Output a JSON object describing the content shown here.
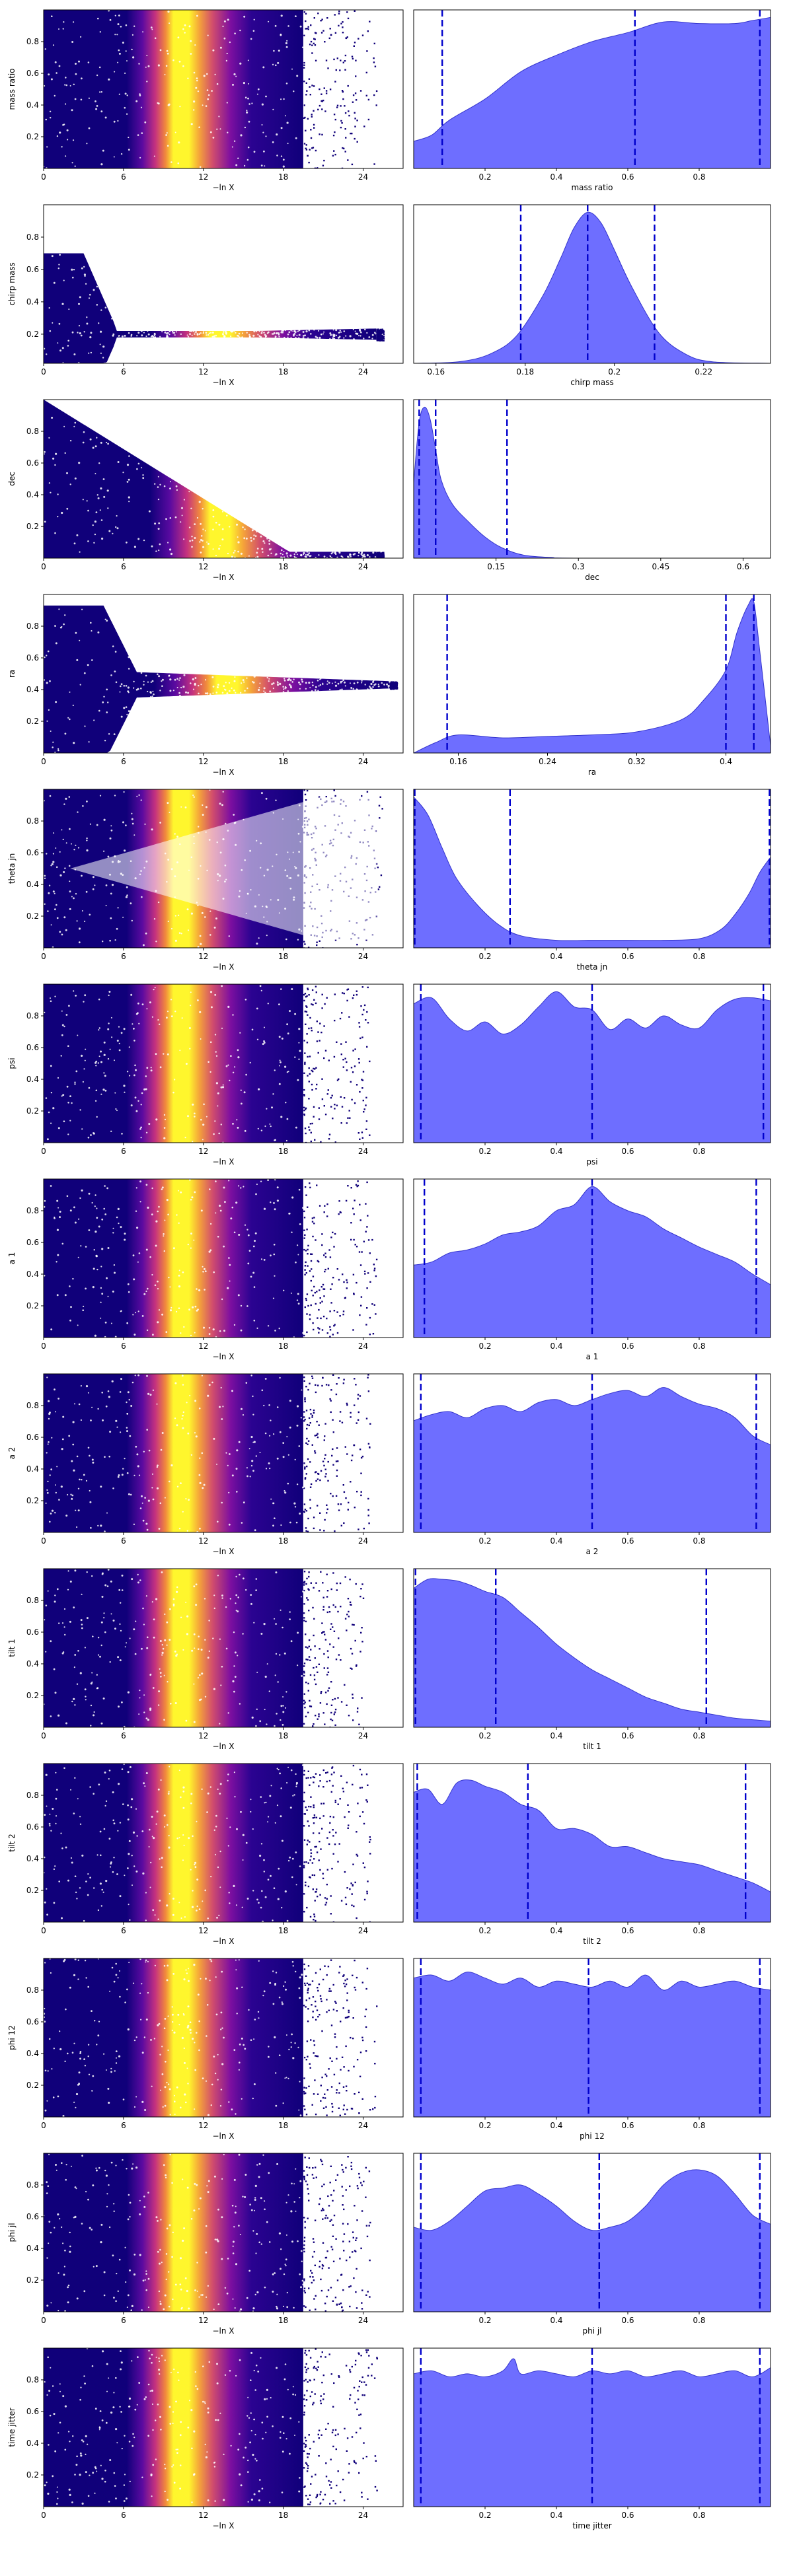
{
  "colors": {
    "kde_fill": "#6666ff",
    "kde_edge": "#3333cc",
    "quantile_line": "#0000cc",
    "scatter_low": "#10007a",
    "scatter_mid": "#c4317f",
    "scatter_high": "#fff62d",
    "axis": "#000000"
  },
  "scatter_colormap": "plasma-like (dark navy at edges, yellow near -lnX ≈ 13–14)",
  "chart_data": [
    {
      "type": "scatter",
      "param": "mass ratio",
      "title": "",
      "xlabel": "−ln X",
      "ylabel": "mass ratio",
      "xlim": [
        0,
        27
      ],
      "ylim": [
        0,
        1
      ],
      "xticks": [
        0,
        6,
        12,
        18,
        24
      ],
      "yticks": [
        0.2,
        0.4,
        0.6,
        0.8
      ],
      "shape": "uniform",
      "max_x": 24.5
    },
    {
      "type": "area",
      "param": "mass ratio",
      "xlabel": "mass ratio",
      "xlim": [
        0,
        1
      ],
      "xticks": [
        0.2,
        0.4,
        0.6,
        0.8
      ],
      "quantiles": [
        0.08,
        0.62,
        0.97
      ],
      "kde": {
        "x": [
          0,
          0.05,
          0.1,
          0.2,
          0.3,
          0.4,
          0.5,
          0.6,
          0.7,
          0.8,
          0.9,
          0.95,
          1.0
        ],
        "y": [
          0.18,
          0.22,
          0.32,
          0.46,
          0.64,
          0.75,
          0.84,
          0.9,
          0.97,
          0.96,
          0.96,
          0.98,
          1.0
        ]
      }
    },
    {
      "type": "scatter",
      "param": "chirp mass",
      "xlabel": "−ln X",
      "ylabel": "chirp mass",
      "xlim": [
        0,
        27
      ],
      "ylim": [
        0.02,
        1
      ],
      "xticks": [
        0,
        6,
        12,
        18,
        24
      ],
      "yticks": [
        0.2,
        0.4,
        0.6,
        0.8
      ],
      "shape": "funnel",
      "center": 0.2,
      "neck": 0.02,
      "max_x": 25
    },
    {
      "type": "area",
      "param": "chirp mass",
      "xlabel": "chirp mass",
      "xlim": [
        0.155,
        0.235
      ],
      "xticks": [
        0.16,
        0.18,
        0.2,
        0.22
      ],
      "quantiles": [
        0.179,
        0.194,
        0.209
      ],
      "kde": {
        "x": [
          0.155,
          0.165,
          0.172,
          0.178,
          0.184,
          0.188,
          0.191,
          0.194,
          0.197,
          0.2,
          0.204,
          0.21,
          0.216,
          0.222,
          0.235
        ],
        "y": [
          0,
          0.01,
          0.06,
          0.18,
          0.45,
          0.7,
          0.9,
          1.0,
          0.93,
          0.75,
          0.5,
          0.2,
          0.06,
          0.01,
          0
        ]
      }
    },
    {
      "type": "scatter",
      "param": "dec",
      "xlabel": "−ln X",
      "ylabel": "dec",
      "xlim": [
        0,
        27
      ],
      "ylim": [
        0,
        1
      ],
      "xticks": [
        0,
        6,
        12,
        18,
        24
      ],
      "yticks": [
        0.2,
        0.4,
        0.6,
        0.8
      ],
      "shape": "decay",
      "max_x": 25
    },
    {
      "type": "area",
      "param": "dec",
      "xlabel": "dec",
      "xlim": [
        0,
        0.65
      ],
      "xticks": [
        0.15,
        0.3,
        0.45,
        0.6
      ],
      "quantiles": [
        0.01,
        0.04,
        0.17
      ],
      "kde": {
        "x": [
          0,
          0.01,
          0.02,
          0.03,
          0.04,
          0.05,
          0.07,
          0.1,
          0.13,
          0.16,
          0.2,
          0.25,
          0.3,
          0.65
        ],
        "y": [
          0.5,
          0.9,
          1.0,
          0.92,
          0.72,
          0.52,
          0.36,
          0.24,
          0.14,
          0.07,
          0.02,
          0.005,
          0,
          0
        ]
      }
    },
    {
      "type": "scatter",
      "param": "ra",
      "xlabel": "−ln X",
      "ylabel": "ra",
      "xlim": [
        0,
        27
      ],
      "ylim": [
        0,
        1
      ],
      "xticks": [
        0,
        6,
        12,
        18,
        24
      ],
      "yticks": [
        0.2,
        0.4,
        0.6,
        0.8
      ],
      "shape": "funnel",
      "center": 0.43,
      "neck": 0.07,
      "max_x": 26
    },
    {
      "type": "area",
      "param": "ra",
      "xlabel": "ra",
      "xlim": [
        0.12,
        0.44
      ],
      "xticks": [
        0.16,
        0.24,
        0.32,
        0.4
      ],
      "quantiles": [
        0.15,
        0.4,
        0.425
      ],
      "kde": {
        "x": [
          0.12,
          0.14,
          0.16,
          0.2,
          0.24,
          0.28,
          0.32,
          0.36,
          0.38,
          0.4,
          0.41,
          0.42,
          0.425,
          0.43,
          0.44
        ],
        "y": [
          0,
          0.07,
          0.12,
          0.1,
          0.11,
          0.12,
          0.14,
          0.22,
          0.35,
          0.55,
          0.8,
          0.98,
          1.0,
          0.7,
          0.05
        ]
      }
    },
    {
      "type": "scatter",
      "param": "theta jn",
      "xlabel": "−ln X",
      "ylabel": "theta jn",
      "xlim": [
        0,
        27
      ],
      "ylim": [
        0,
        1
      ],
      "xticks": [
        0,
        6,
        12,
        18,
        24
      ],
      "yticks": [
        0.2,
        0.4,
        0.6,
        0.8
      ],
      "shape": "bimodal",
      "max_x": 25
    },
    {
      "type": "area",
      "param": "theta jn",
      "xlabel": "theta jn",
      "xlim": [
        0,
        1
      ],
      "xticks": [
        0.2,
        0.4,
        0.6,
        0.8
      ],
      "quantiles": [
        0.003,
        0.27,
        0.997
      ],
      "kde": {
        "x": [
          0,
          0.04,
          0.08,
          0.12,
          0.18,
          0.24,
          0.3,
          0.4,
          0.5,
          0.6,
          0.7,
          0.8,
          0.86,
          0.9,
          0.94,
          0.97,
          1.0
        ],
        "y": [
          1.0,
          0.88,
          0.66,
          0.46,
          0.28,
          0.15,
          0.08,
          0.05,
          0.05,
          0.05,
          0.05,
          0.06,
          0.12,
          0.22,
          0.36,
          0.5,
          0.6
        ]
      }
    },
    {
      "type": "scatter",
      "param": "psi",
      "xlabel": "−ln X",
      "ylabel": "psi",
      "xlim": [
        0,
        27
      ],
      "ylim": [
        0,
        1
      ],
      "xticks": [
        0,
        6,
        12,
        18,
        24
      ],
      "yticks": [
        0.2,
        0.4,
        0.6,
        0.8
      ],
      "shape": "uniform",
      "max_x": 24
    },
    {
      "type": "area",
      "param": "psi",
      "xlabel": "psi",
      "xlim": [
        0,
        1
      ],
      "xticks": [
        0.2,
        0.4,
        0.6,
        0.8
      ],
      "quantiles": [
        0.02,
        0.5,
        0.98
      ],
      "kde": {
        "x": [
          0,
          0.05,
          0.1,
          0.15,
          0.2,
          0.25,
          0.3,
          0.35,
          0.4,
          0.45,
          0.5,
          0.55,
          0.6,
          0.65,
          0.7,
          0.75,
          0.8,
          0.85,
          0.9,
          0.95,
          1.0
        ],
        "y": [
          0.92,
          0.96,
          0.82,
          0.74,
          0.8,
          0.72,
          0.78,
          0.9,
          1.0,
          0.9,
          0.88,
          0.75,
          0.82,
          0.76,
          0.84,
          0.78,
          0.76,
          0.88,
          0.95,
          0.96,
          0.94
        ]
      }
    },
    {
      "type": "scatter",
      "param": "a 1",
      "xlabel": "−ln X",
      "ylabel": "a 1",
      "xlim": [
        0,
        27
      ],
      "ylim": [
        0,
        1
      ],
      "xticks": [
        0,
        6,
        12,
        18,
        24
      ],
      "yticks": [
        0.2,
        0.4,
        0.6,
        0.8
      ],
      "shape": "uniform",
      "max_x": 24.5
    },
    {
      "type": "area",
      "param": "a 1",
      "xlabel": "a 1",
      "xlim": [
        0,
        1
      ],
      "xticks": [
        0.2,
        0.4,
        0.6,
        0.8
      ],
      "quantiles": [
        0.03,
        0.5,
        0.96
      ],
      "kde": {
        "x": [
          0,
          0.05,
          0.1,
          0.15,
          0.2,
          0.25,
          0.3,
          0.35,
          0.4,
          0.45,
          0.5,
          0.55,
          0.6,
          0.65,
          0.7,
          0.75,
          0.8,
          0.85,
          0.9,
          0.95,
          1.0
        ],
        "y": [
          0.48,
          0.5,
          0.56,
          0.58,
          0.62,
          0.68,
          0.7,
          0.74,
          0.84,
          0.88,
          1.0,
          0.9,
          0.84,
          0.8,
          0.72,
          0.66,
          0.6,
          0.55,
          0.5,
          0.42,
          0.35
        ]
      }
    },
    {
      "type": "scatter",
      "param": "a 2",
      "xlabel": "−ln X",
      "ylabel": "a 2",
      "xlim": [
        0,
        27
      ],
      "ylim": [
        0,
        1
      ],
      "xticks": [
        0,
        6,
        12,
        18,
        24
      ],
      "yticks": [
        0.2,
        0.4,
        0.6,
        0.8
      ],
      "shape": "uniform",
      "max_x": 24
    },
    {
      "type": "area",
      "param": "a 2",
      "xlabel": "a 2",
      "xlim": [
        0,
        1
      ],
      "xticks": [
        0.2,
        0.4,
        0.6,
        0.8
      ],
      "quantiles": [
        0.02,
        0.5,
        0.96
      ],
      "kde": {
        "x": [
          0,
          0.05,
          0.1,
          0.15,
          0.2,
          0.25,
          0.3,
          0.35,
          0.4,
          0.45,
          0.5,
          0.55,
          0.6,
          0.65,
          0.7,
          0.75,
          0.8,
          0.85,
          0.9,
          0.95,
          1.0
        ],
        "y": [
          0.74,
          0.78,
          0.8,
          0.76,
          0.82,
          0.84,
          0.8,
          0.86,
          0.88,
          0.84,
          0.88,
          0.92,
          0.94,
          0.9,
          0.96,
          0.9,
          0.85,
          0.82,
          0.76,
          0.64,
          0.58
        ]
      }
    },
    {
      "type": "scatter",
      "param": "tilt 1",
      "xlabel": "−ln X",
      "ylabel": "tilt 1",
      "xlim": [
        0,
        27
      ],
      "ylim": [
        0,
        1
      ],
      "xticks": [
        0,
        6,
        12,
        18,
        24
      ],
      "yticks": [
        0.2,
        0.4,
        0.6,
        0.8
      ],
      "shape": "uniform",
      "max_x": 23.5
    },
    {
      "type": "area",
      "param": "tilt 1",
      "xlabel": "tilt 1",
      "xlim": [
        0,
        1
      ],
      "xticks": [
        0.2,
        0.4,
        0.6,
        0.8
      ],
      "quantiles": [
        0.005,
        0.23,
        0.82
      ],
      "kde": {
        "x": [
          0,
          0.04,
          0.08,
          0.12,
          0.16,
          0.2,
          0.25,
          0.3,
          0.35,
          0.4,
          0.45,
          0.5,
          0.55,
          0.6,
          0.65,
          0.7,
          0.75,
          0.8,
          0.85,
          0.9,
          0.95,
          1.0
        ],
        "y": [
          0.92,
          0.98,
          0.98,
          0.97,
          0.94,
          0.9,
          0.86,
          0.76,
          0.66,
          0.55,
          0.46,
          0.38,
          0.32,
          0.26,
          0.2,
          0.16,
          0.12,
          0.1,
          0.08,
          0.06,
          0.05,
          0.04
        ]
      }
    },
    {
      "type": "scatter",
      "param": "tilt 2",
      "xlabel": "−ln X",
      "ylabel": "tilt 2",
      "xlim": [
        0,
        27
      ],
      "ylim": [
        0,
        1
      ],
      "xticks": [
        0,
        6,
        12,
        18,
        24
      ],
      "yticks": [
        0.2,
        0.4,
        0.6,
        0.8
      ],
      "shape": "uniform",
      "max_x": 24
    },
    {
      "type": "area",
      "param": "tilt 2",
      "xlabel": "tilt 2",
      "xlim": [
        0,
        1
      ],
      "xticks": [
        0.2,
        0.4,
        0.6,
        0.8
      ],
      "quantiles": [
        0.01,
        0.32,
        0.93
      ],
      "kde": {
        "x": [
          0,
          0.04,
          0.08,
          0.12,
          0.16,
          0.2,
          0.25,
          0.3,
          0.35,
          0.4,
          0.45,
          0.5,
          0.55,
          0.6,
          0.65,
          0.7,
          0.75,
          0.8,
          0.85,
          0.9,
          0.95,
          1.0
        ],
        "y": [
          0.86,
          0.88,
          0.78,
          0.92,
          0.94,
          0.9,
          0.86,
          0.78,
          0.74,
          0.62,
          0.62,
          0.58,
          0.5,
          0.5,
          0.46,
          0.42,
          0.4,
          0.38,
          0.34,
          0.3,
          0.26,
          0.2
        ]
      }
    },
    {
      "type": "scatter",
      "param": "phi 12",
      "xlabel": "−ln X",
      "ylabel": "phi 12",
      "xlim": [
        0,
        27
      ],
      "ylim": [
        0,
        1
      ],
      "xticks": [
        0,
        6,
        12,
        18,
        24
      ],
      "yticks": [
        0.2,
        0.4,
        0.6,
        0.8
      ],
      "shape": "uniform",
      "max_x": 24.5
    },
    {
      "type": "area",
      "param": "phi 12",
      "xlabel": "phi 12",
      "xlim": [
        0,
        1
      ],
      "xticks": [
        0.2,
        0.4,
        0.6,
        0.8
      ],
      "quantiles": [
        0.02,
        0.49,
        0.97
      ],
      "kde": {
        "x": [
          0,
          0.05,
          0.1,
          0.15,
          0.2,
          0.25,
          0.3,
          0.35,
          0.4,
          0.45,
          0.5,
          0.55,
          0.6,
          0.65,
          0.7,
          0.75,
          0.8,
          0.85,
          0.9,
          0.95,
          1.0
        ],
        "y": [
          0.92,
          0.94,
          0.9,
          0.96,
          0.92,
          0.88,
          0.92,
          0.86,
          0.9,
          0.88,
          0.86,
          0.9,
          0.86,
          0.94,
          0.84,
          0.9,
          0.86,
          0.88,
          0.9,
          0.86,
          0.84
        ]
      }
    },
    {
      "type": "scatter",
      "param": "phi jl",
      "xlabel": "−ln X",
      "ylabel": "phi jl",
      "xlim": [
        0,
        27
      ],
      "ylim": [
        0,
        1
      ],
      "xticks": [
        0,
        6,
        12,
        18,
        24
      ],
      "yticks": [
        0.2,
        0.4,
        0.6,
        0.8
      ],
      "shape": "uniform",
      "max_x": 24
    },
    {
      "type": "area",
      "param": "phi jl",
      "xlabel": "phi jl",
      "xlim": [
        0,
        1
      ],
      "xticks": [
        0.2,
        0.4,
        0.6,
        0.8
      ],
      "quantiles": [
        0.02,
        0.52,
        0.97
      ],
      "kde": {
        "x": [
          0,
          0.05,
          0.1,
          0.15,
          0.2,
          0.25,
          0.3,
          0.35,
          0.4,
          0.45,
          0.5,
          0.55,
          0.6,
          0.65,
          0.7,
          0.75,
          0.8,
          0.85,
          0.9,
          0.95,
          1.0
        ],
        "y": [
          0.56,
          0.54,
          0.6,
          0.7,
          0.8,
          0.82,
          0.84,
          0.78,
          0.7,
          0.6,
          0.54,
          0.56,
          0.6,
          0.7,
          0.84,
          0.92,
          0.94,
          0.9,
          0.78,
          0.64,
          0.58
        ]
      }
    },
    {
      "type": "scatter",
      "param": "time jitter",
      "xlabel": "−ln X",
      "ylabel": "time jitter",
      "xlim": [
        0,
        27
      ],
      "ylim": [
        0,
        1
      ],
      "xticks": [
        0,
        6,
        12,
        18,
        24
      ],
      "yticks": [
        0.2,
        0.4,
        0.6,
        0.8
      ],
      "shape": "uniform",
      "max_x": 24.5
    },
    {
      "type": "area",
      "param": "time jitter",
      "xlabel": "time jitter",
      "xlim": [
        0,
        1
      ],
      "xticks": [
        0.2,
        0.4,
        0.6,
        0.8
      ],
      "quantiles": [
        0.02,
        0.5,
        0.97
      ],
      "kde": {
        "x": [
          0,
          0.05,
          0.1,
          0.15,
          0.2,
          0.25,
          0.28,
          0.3,
          0.35,
          0.4,
          0.45,
          0.5,
          0.55,
          0.6,
          0.65,
          0.7,
          0.75,
          0.8,
          0.85,
          0.9,
          0.95,
          1.0
        ],
        "y": [
          0.88,
          0.9,
          0.86,
          0.88,
          0.86,
          0.9,
          0.98,
          0.88,
          0.9,
          0.88,
          0.86,
          0.9,
          0.88,
          0.9,
          0.86,
          0.88,
          0.9,
          0.86,
          0.88,
          0.9,
          0.86,
          0.92
        ]
      }
    }
  ]
}
